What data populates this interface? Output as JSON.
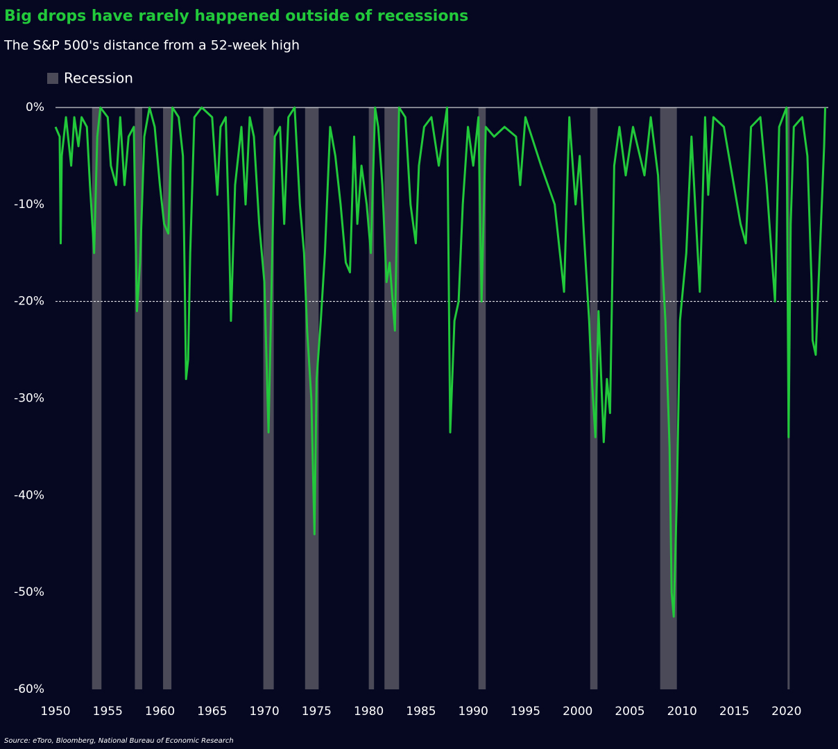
{
  "chart_data": {
    "type": "line",
    "title": "Big drops have rarely happened outside of recessions",
    "subtitle": "The S&P 500's distance from a 52-week high",
    "source": "Source: eToro, Bloomberg, National Bureau of Economic Research",
    "color": "#22c93a",
    "recession_label": "Recession",
    "recession_color": "#4a4a58",
    "recessions": [
      [
        1953.5,
        1954.4
      ],
      [
        1957.6,
        1958.3
      ],
      [
        1960.3,
        1961.1
      ],
      [
        1969.9,
        1970.9
      ],
      [
        1973.9,
        1975.2
      ],
      [
        1980.0,
        1980.5
      ],
      [
        1981.5,
        1982.9
      ],
      [
        1990.5,
        1991.2
      ],
      [
        2001.2,
        2001.9
      ],
      [
        2007.9,
        2009.5
      ],
      [
        2020.1,
        2020.3
      ]
    ],
    "reference_line": -20,
    "x": [
      1950.0,
      1950.4,
      1950.5,
      1950.6,
      1951.0,
      1951.5,
      1951.8,
      1952.2,
      1952.5,
      1953.0,
      1953.3,
      1953.7,
      1954.0,
      1954.3,
      1955.0,
      1955.3,
      1955.8,
      1956.2,
      1956.6,
      1957.0,
      1957.5,
      1957.8,
      1958.1,
      1958.5,
      1959.0,
      1959.5,
      1960.0,
      1960.4,
      1960.8,
      1961.2,
      1961.8,
      1962.2,
      1962.4,
      1962.5,
      1962.7,
      1962.9,
      1963.3,
      1964.0,
      1965.0,
      1965.5,
      1965.8,
      1966.3,
      1966.6,
      1966.8,
      1967.2,
      1967.8,
      1968.2,
      1968.6,
      1969.0,
      1969.5,
      1970.0,
      1970.4,
      1970.7,
      1971.0,
      1971.5,
      1971.9,
      1972.3,
      1972.9,
      1973.4,
      1973.8,
      1974.1,
      1974.5,
      1974.8,
      1975.0,
      1975.4,
      1975.8,
      1976.3,
      1976.8,
      1977.3,
      1977.8,
      1978.2,
      1978.6,
      1978.9,
      1979.3,
      1979.8,
      1980.2,
      1980.6,
      1980.9,
      1981.3,
      1981.7,
      1982.0,
      1982.5,
      1982.9,
      1983.5,
      1984.0,
      1984.5,
      1984.8,
      1985.3,
      1986.0,
      1986.7,
      1987.5,
      1987.8,
      1988.2,
      1988.6,
      1989.0,
      1989.5,
      1990.0,
      1990.5,
      1990.8,
      1991.2,
      1992.0,
      1993.0,
      1994.1,
      1994.5,
      1995.0,
      1996.5,
      1997.8,
      1998.7,
      1999.2,
      1999.8,
      2000.2,
      2000.6,
      2001.1,
      2001.3,
      2001.7,
      2002.0,
      2002.5,
      2002.8,
      2003.1,
      2003.5,
      2004.0,
      2004.6,
      2005.3,
      2006.4,
      2007.0,
      2007.7,
      2008.0,
      2008.4,
      2008.8,
      2009.0,
      2009.2,
      2009.5,
      2009.8,
      2010.4,
      2010.9,
      2011.7,
      2012.2,
      2012.5,
      2013.0,
      2014.0,
      2015.6,
      2016.1,
      2016.6,
      2017.5,
      2018.1,
      2018.9,
      2019.3,
      2020.0,
      2020.2,
      2020.4,
      2020.7,
      2021.5,
      2022.0,
      2022.4,
      2022.5,
      2022.8,
      2023.0,
      2023.3,
      2023.6,
      2023.7
    ],
    "values": [
      -2,
      -3,
      -14,
      -5,
      -1,
      -6,
      -1,
      -4,
      -1,
      -2,
      -8,
      -15,
      -3,
      0,
      -1,
      -6,
      -8,
      -1,
      -8,
      -3,
      -2,
      -21,
      -16,
      -3,
      0,
      -2,
      -8,
      -12,
      -13,
      0,
      -1,
      -5,
      -20,
      -28,
      -26,
      -15,
      -1,
      0,
      -1,
      -9,
      -2,
      -1,
      -12,
      -22,
      -8,
      -2,
      -10,
      -1,
      -3,
      -12,
      -18,
      -33.5,
      -18,
      -3,
      -2,
      -12,
      -1,
      0,
      -10,
      -15,
      -23,
      -30,
      -44,
      -28,
      -22,
      -15,
      -2,
      -5,
      -10,
      -16,
      -17,
      -3,
      -12,
      -6,
      -10,
      -15,
      0,
      -2,
      -8,
      -18,
      -16,
      -23,
      0,
      -1,
      -10,
      -14,
      -6,
      -2,
      -1,
      -6,
      0,
      -33.5,
      -22,
      -20,
      -10,
      -2,
      -6,
      -1,
      -20,
      -2,
      -3,
      -2,
      -3,
      -8,
      -1,
      -6,
      -10,
      -19,
      -1,
      -10,
      -5,
      -13,
      -22,
      -27,
      -34,
      -21,
      -34.5,
      -28,
      -31.5,
      -6,
      -2,
      -7,
      -2,
      -7,
      -1,
      -7,
      -14,
      -22,
      -35,
      -50,
      -52.5,
      -40,
      -22,
      -15,
      -3,
      -19,
      -1,
      -9,
      -1,
      -2,
      -12,
      -14,
      -2,
      -1,
      -8,
      -20,
      -2,
      0,
      -34,
      -12,
      -2,
      -1,
      -5,
      -18,
      -24,
      -25.5,
      -20,
      -12,
      -4,
      0
    ],
    "xlim": [
      1950,
      2024
    ],
    "xticks": [
      1950,
      1955,
      1960,
      1965,
      1970,
      1975,
      1980,
      1985,
      1990,
      1995,
      2000,
      2005,
      2010,
      2015,
      2020
    ],
    "ylim": [
      -60,
      0
    ],
    "yticks": [
      {
        "value": 0,
        "label": "0%"
      },
      {
        "value": -10,
        "label": "-10%"
      },
      {
        "value": -20,
        "label": "-20%"
      },
      {
        "value": -30,
        "label": "-30%"
      },
      {
        "value": -40,
        "label": "-40%"
      },
      {
        "value": -50,
        "label": "-50%"
      },
      {
        "value": -60,
        "label": "-60%"
      }
    ]
  }
}
